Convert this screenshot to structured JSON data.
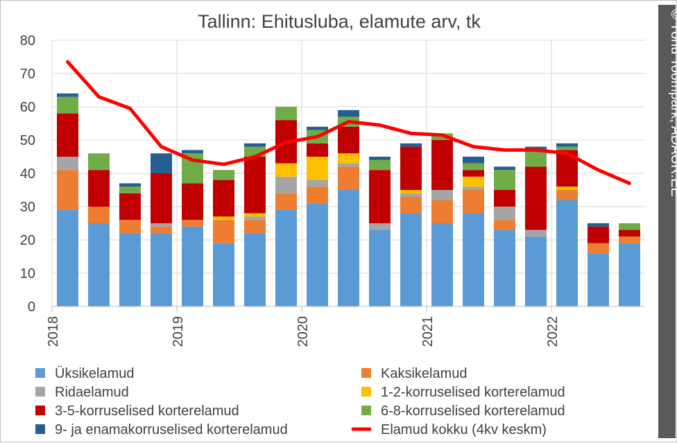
{
  "chart_data": {
    "type": "bar",
    "stacked": true,
    "title": "Tallinn: Ehitusluba, elamute arv, tk",
    "ylim": [
      0,
      80
    ],
    "yticks": [
      0,
      10,
      20,
      30,
      40,
      50,
      60,
      70,
      80
    ],
    "grid": true,
    "legend_position": "bottom",
    "x_year_labels": [
      "2018",
      "2019",
      "2020",
      "2021",
      "2022"
    ],
    "categories": [
      "2018Q1",
      "2018Q2",
      "2018Q3",
      "2018Q4",
      "2019Q1",
      "2019Q2",
      "2019Q3",
      "2019Q4",
      "2020Q1",
      "2020Q2",
      "2020Q3",
      "2020Q4",
      "2021Q1",
      "2021Q2",
      "2021Q3",
      "2021Q4",
      "2022Q1",
      "2022Q2",
      "2022Q3"
    ],
    "series": [
      {
        "name": "Üksikelamud",
        "color": "#5b9bd5",
        "values": [
          29,
          25,
          22,
          22,
          24,
          19,
          22,
          29,
          31,
          35,
          23,
          28,
          25,
          28,
          23,
          21,
          32,
          16,
          19
        ]
      },
      {
        "name": "Kaksikelamud",
        "color": "#ed7d31",
        "values": [
          12,
          5,
          4,
          2,
          2,
          7,
          4,
          5,
          5,
          7,
          0,
          5,
          7,
          7,
          3,
          0,
          3,
          3,
          2
        ]
      },
      {
        "name": "Ridaelamud",
        "color": "#a5a5a5",
        "values": [
          4,
          0,
          0,
          1,
          0,
          0,
          1,
          5,
          2,
          1,
          2,
          1,
          3,
          1,
          4,
          2,
          0,
          0,
          0
        ]
      },
      {
        "name": "1-2-korruselised korterelamud",
        "color": "#ffc000",
        "values": [
          0,
          0,
          0,
          0,
          0,
          1,
          1,
          4,
          7,
          3,
          0,
          1,
          0,
          3,
          0,
          0,
          1,
          0,
          0
        ]
      },
      {
        "name": "3-5-korruselised korterelamud",
        "color": "#c00000",
        "values": [
          13,
          11,
          8,
          15,
          11,
          11,
          17,
          13,
          4,
          8,
          16,
          13,
          15,
          2,
          5,
          19,
          11,
          5,
          2
        ]
      },
      {
        "name": "6-8-korruselised korterelamud",
        "color": "#70ad47",
        "values": [
          5,
          5,
          2,
          0,
          9,
          3,
          3,
          4,
          4,
          3,
          3,
          0,
          2,
          2,
          6,
          5,
          1,
          0,
          2
        ]
      },
      {
        "name": "9- ja enamakorruselised korterelamud",
        "color": "#255e91",
        "values": [
          1,
          0,
          1,
          6,
          1,
          0,
          1,
          0,
          1,
          2,
          1,
          1,
          0,
          2,
          1,
          1,
          1,
          1,
          0
        ]
      }
    ],
    "line": {
      "name": "Elamud kokku (4kv keskm)",
      "color": "#ff0000",
      "values": [
        73.5,
        63,
        59.5,
        48,
        44,
        42.7,
        45,
        49.3,
        51,
        55.5,
        54.5,
        52,
        51.5,
        48,
        47,
        47,
        46,
        41,
        37
      ]
    }
  },
  "credit": {
    "text": "© Tõnu Toompark, ADAUR.EE",
    "bg_color": "#595959"
  }
}
